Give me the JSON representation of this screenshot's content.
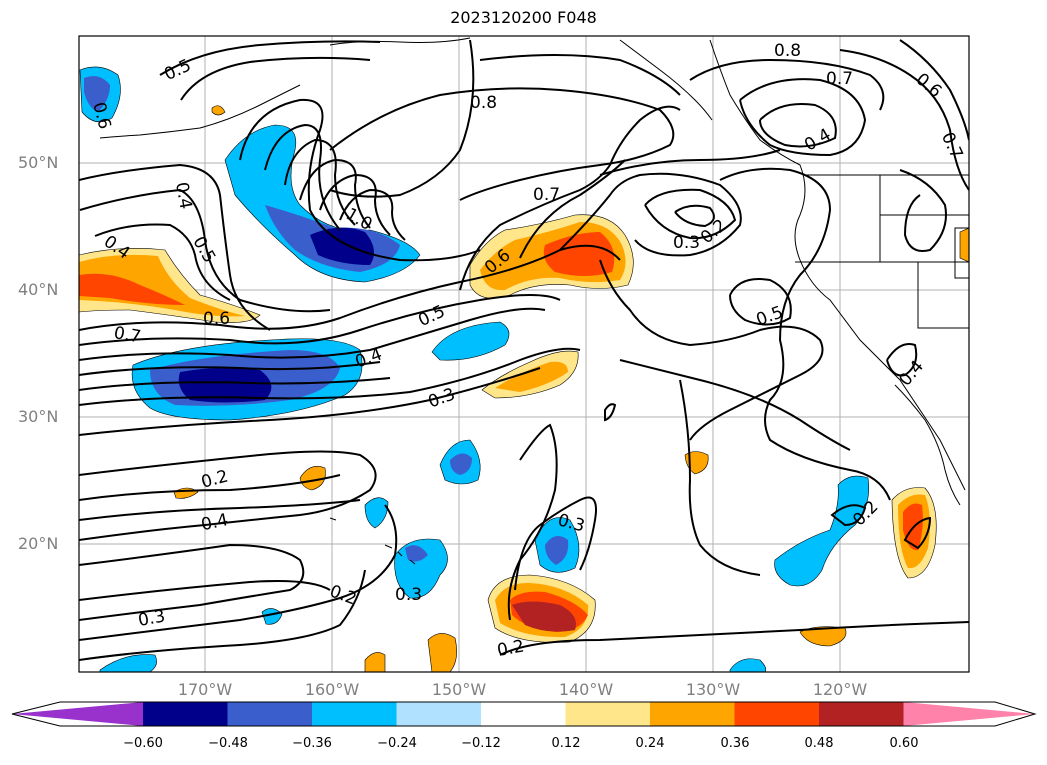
{
  "title": "2023120200 F048",
  "lat_labels": [
    "50°N",
    "40°N",
    "30°N",
    "20°N"
  ],
  "lon_labels": [
    "170°W",
    "160°W",
    "150°W",
    "140°W",
    "130°W",
    "120°W"
  ],
  "colorbar": {
    "ticks": [
      "−0.60",
      "−0.48",
      "−0.36",
      "−0.24",
      "−0.12",
      "0.12",
      "0.24",
      "0.36",
      "0.48",
      "0.60"
    ],
    "colors": [
      "#9932CC",
      "#00008B",
      "#3A5FCD",
      "#00BFFF",
      "#B0E2FF",
      "#FFFFFF",
      "#FFE68A",
      "#FFA500",
      "#FF4500",
      "#B22222",
      "#FF82AB"
    ]
  },
  "contour_labels": [
    "0.5",
    "0.8",
    "0.8",
    "0.7",
    "0.6",
    "0.7",
    "0.4",
    "0.6",
    "0.4",
    "0.5",
    "0.4",
    "1.0",
    "0.7",
    "0.2",
    "0.3",
    "0.6",
    "0.6",
    "0.5",
    "0.7",
    "0.5",
    "0.4",
    "0.3",
    "0.4",
    "0.2",
    "0.4",
    "0.3",
    "0.2",
    "0.3",
    "0.3",
    "0.2",
    "0.2",
    "0.5"
  ],
  "shading_colors": {
    "neg_light": "#B0E2FF",
    "neg_mid": "#00BFFF",
    "neg_strong": "#3A5FCD",
    "neg_max": "#00008B",
    "pos_light": "#FFE68A",
    "pos_mid": "#FFA500",
    "pos_strong": "#FF4500",
    "pos_max": "#B22222"
  }
}
